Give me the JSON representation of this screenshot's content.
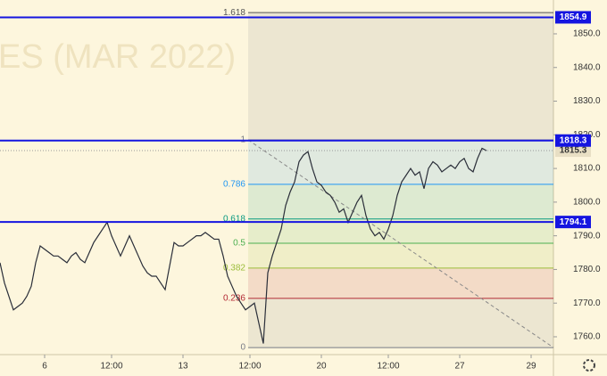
{
  "chart_data": {
    "type": "line",
    "watermark": "ES (MAR 2022)",
    "series": [
      {
        "color": "#2a2e39",
        "values": [
          1782,
          1776,
          1772,
          1768,
          1769,
          1770,
          1772,
          1775,
          1782,
          1787,
          1786,
          1785,
          1784,
          1784,
          1783,
          1782,
          1784,
          1785,
          1783,
          1782,
          1785,
          1788,
          1790,
          1792,
          1794,
          1790,
          1787,
          1784,
          1787,
          1790,
          1787,
          1784,
          1781,
          1779,
          1778,
          1778,
          1776,
          1774,
          1781,
          1788,
          1787,
          1787,
          1788,
          1789,
          1790,
          1790,
          1791,
          1790,
          1789,
          1789,
          1784,
          1778,
          1775,
          1772,
          1770,
          1768,
          1769,
          1770,
          1764,
          1758,
          1779,
          1784,
          1788,
          1792,
          1799,
          1803,
          1806,
          1812,
          1814,
          1815,
          1810,
          1806,
          1805,
          1803,
          1802,
          1800,
          1797,
          1798,
          1794,
          1797,
          1800,
          1802,
          1796,
          1792,
          1790,
          1791,
          1789,
          1792,
          1796,
          1802,
          1806,
          1808,
          1810,
          1808,
          1809,
          1804,
          1810,
          1812,
          1811,
          1809,
          1810,
          1811,
          1810,
          1812,
          1813,
          1810,
          1809,
          1813,
          1816,
          1815.3
        ]
      }
    ],
    "xlim": [
      0,
      124
    ],
    "xticks": [
      {
        "value": 10,
        "label": "6"
      },
      {
        "value": 25,
        "label": "12:00"
      },
      {
        "value": 41,
        "label": "13"
      },
      {
        "value": 56,
        "label": "12:00"
      },
      {
        "value": 72,
        "label": "20"
      },
      {
        "value": 87,
        "label": "12:00"
      },
      {
        "value": 103,
        "label": "27"
      },
      {
        "value": 119,
        "label": "29"
      }
    ],
    "ylim": [
      1754.7,
      1860.05
    ],
    "yticks": [
      {
        "value": 1760,
        "label": "1760.0"
      },
      {
        "value": 1770,
        "label": "1770.0"
      },
      {
        "value": 1780,
        "label": "1780.0"
      },
      {
        "value": 1790,
        "label": "1790.0"
      },
      {
        "value": 1800,
        "label": "1800.0"
      },
      {
        "value": 1810,
        "label": "1810.0"
      },
      {
        "value": 1820,
        "label": "1820.0"
      },
      {
        "value": 1830,
        "label": "1830.0"
      },
      {
        "value": 1840,
        "label": "1840.0"
      },
      {
        "value": 1850,
        "label": "1850.0"
      }
    ],
    "levels": {
      "color": "#1515e0",
      "values": [
        1854.9,
        1818.3,
        1794.1
      ]
    },
    "fib": {
      "start": 55.6,
      "ratios": [
        0,
        0.236,
        0.382,
        0.5,
        0.618,
        0.786,
        1,
        1.618
      ],
      "prices": [
        1756.8,
        1771.4,
        1780.4,
        1787.8,
        1795,
        1805.3,
        1818.5,
        1856.3
      ],
      "colors": [
        "#787b86",
        "#b22833",
        "#9bbd3a",
        "#4caf50",
        "#089981",
        "#2196f3",
        "#787b86",
        "#555555"
      ]
    }
  }
}
